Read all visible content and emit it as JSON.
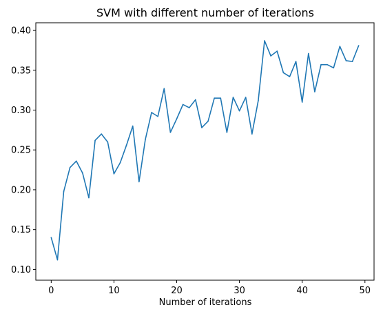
{
  "chart_data": {
    "type": "line",
    "title": "SVM with different number of iterations",
    "xlabel": "Number of iterations",
    "ylabel": "",
    "xlim": [
      -2.45,
      51.45
    ],
    "ylim": [
      0.1,
      0.4
    ],
    "grid": false,
    "x_ticks": [
      0,
      10,
      20,
      30,
      40,
      50
    ],
    "y_ticks": [
      0.1,
      0.15,
      0.2,
      0.25,
      0.3,
      0.35,
      0.4
    ],
    "x_tick_labels": [
      "0",
      "10",
      "20",
      "30",
      "40",
      "50"
    ],
    "y_tick_labels": [
      "0.10",
      "0.15",
      "0.20",
      "0.25",
      "0.30",
      "0.35",
      "0.40"
    ],
    "series": [
      {
        "color": "#1f77b4",
        "x": [
          0,
          1,
          2,
          3,
          4,
          5,
          6,
          7,
          8,
          9,
          10,
          11,
          12,
          13,
          14,
          15,
          16,
          17,
          18,
          19,
          20,
          21,
          22,
          23,
          24,
          25,
          26,
          27,
          28,
          29,
          30,
          31,
          32,
          33,
          34,
          35,
          36,
          37,
          38,
          39,
          40,
          41,
          42,
          43,
          44,
          45,
          46,
          47,
          48,
          49
        ],
        "values": [
          0.14,
          0.112,
          0.198,
          0.228,
          0.236,
          0.221,
          0.19,
          0.262,
          0.27,
          0.26,
          0.22,
          0.234,
          0.256,
          0.28,
          0.21,
          0.263,
          0.297,
          0.292,
          0.327,
          0.272,
          0.289,
          0.307,
          0.303,
          0.313,
          0.278,
          0.286,
          0.315,
          0.315,
          0.272,
          0.316,
          0.299,
          0.316,
          0.27,
          0.312,
          0.387,
          0.368,
          0.374,
          0.347,
          0.342,
          0.361,
          0.31,
          0.371,
          0.323,
          0.357,
          0.357,
          0.353,
          0.38,
          0.362,
          0.361,
          0.381
        ]
      }
    ]
  }
}
